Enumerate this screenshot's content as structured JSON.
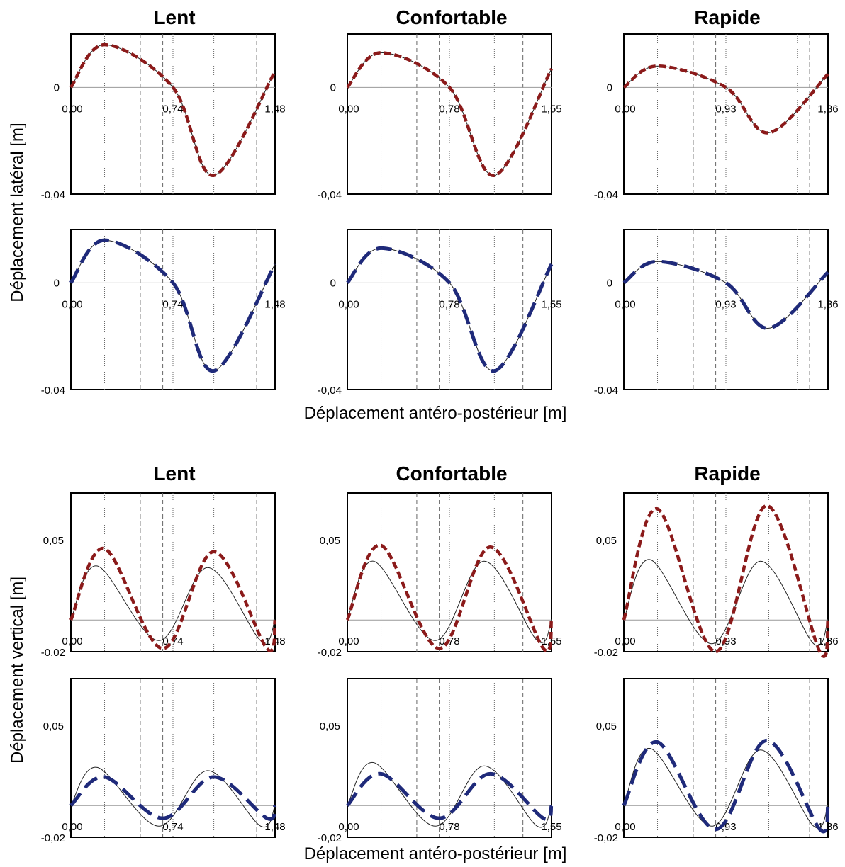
{
  "titles": [
    "Lent",
    "Confortable",
    "Rapide"
  ],
  "labels": {
    "lateral_ylabel": "Déplacement latéral [m]",
    "vertical_ylabel": "Déplacement vertical [m]",
    "xlabel_top": "Déplacement antéro-postérieur [m]",
    "xlabel_bottom": "Déplacement antéro-postérieur [m]"
  },
  "colors": {
    "red": "#8B1A1A",
    "blue": "#1F2A7A",
    "reference": "#333333"
  },
  "chart_data": [
    {
      "type": "line",
      "quantity": "lateral",
      "speeds": [
        "Lent",
        "Confortable",
        "Rapide"
      ],
      "xticks": [
        [
          "0,00",
          "0,74",
          "1,48"
        ],
        [
          "0,00",
          "0,78",
          "1,55"
        ],
        [
          "0,00",
          "0,93",
          "1,86"
        ]
      ],
      "yticks": [
        "0",
        "-0,04"
      ],
      "ylim": [
        -0.04,
        0.02
      ],
      "vertical_dotted_lines": [
        [
          0.165,
          0.5,
          0.7
        ],
        [
          0.165,
          0.5,
          0.72
        ],
        [
          0.165,
          0.5,
          0.85
        ]
      ],
      "vertical_dashed_lines": [
        [
          0.34,
          0.45,
          0.91
        ],
        [
          0.34,
          0.45,
          0.86
        ],
        [
          0.34,
          0.45,
          0.91
        ]
      ],
      "rows": [
        {
          "color": "red",
          "style": "dashed-short",
          "panels": [
            {
              "x": [
                0,
                0.165,
                0.5,
                0.7,
                1.0
              ],
              "y": [
                0,
                0.016,
                0.0,
                -0.033,
                0.006
              ]
            },
            {
              "x": [
                0,
                0.165,
                0.5,
                0.72,
                1.0
              ],
              "y": [
                0,
                0.013,
                0.0,
                -0.033,
                0.007
              ]
            },
            {
              "x": [
                0,
                0.165,
                0.5,
                0.71,
                1.0
              ],
              "y": [
                0,
                0.008,
                0.0,
                -0.017,
                0.005
              ]
            }
          ]
        },
        {
          "color": "blue",
          "style": "dashed-long",
          "panels": [
            {
              "x": [
                0,
                0.165,
                0.5,
                0.7,
                1.0
              ],
              "y": [
                0,
                0.016,
                0.0,
                -0.033,
                0.007
              ]
            },
            {
              "x": [
                0,
                0.165,
                0.5,
                0.72,
                1.0
              ],
              "y": [
                0,
                0.013,
                0.0,
                -0.033,
                0.007
              ]
            },
            {
              "x": [
                0,
                0.165,
                0.5,
                0.71,
                1.0
              ],
              "y": [
                0,
                0.008,
                0.0,
                -0.017,
                0.004
              ]
            }
          ]
        }
      ]
    },
    {
      "type": "line",
      "quantity": "vertical",
      "speeds": [
        "Lent",
        "Confortable",
        "Rapide"
      ],
      "xticks": [
        [
          "0,00",
          "0,74",
          "1,48"
        ],
        [
          "0,00",
          "0,78",
          "1,55"
        ],
        [
          "0,00",
          "0,93",
          "1,86"
        ]
      ],
      "yticks": [
        "0,05",
        "-0,02"
      ],
      "ylim": [
        -0.02,
        0.08
      ],
      "vertical_dotted_lines": [
        [
          0.165,
          0.5,
          0.7
        ],
        [
          0.165,
          0.5,
          0.72
        ],
        [
          0.165,
          0.5,
          0.71
        ]
      ],
      "vertical_dashed_lines": [
        [
          0.34,
          0.45,
          0.91
        ],
        [
          0.34,
          0.45,
          0.86
        ],
        [
          0.34,
          0.45,
          0.91
        ]
      ],
      "rows": [
        {
          "color": "red",
          "style": "dashed-short",
          "panels": [
            {
              "peaks": [
                0.045,
                0.043
              ],
              "trough": -0.018,
              "ref_peaks": [
                0.034,
                0.033
              ],
              "ref_trough": -0.013
            },
            {
              "peaks": [
                0.047,
                0.046
              ],
              "trough": -0.018,
              "ref_peaks": [
                0.037,
                0.037
              ],
              "ref_trough": -0.013
            },
            {
              "peaks": [
                0.07,
                0.072
              ],
              "trough": -0.02,
              "ref_peaks": [
                0.038,
                0.037
              ],
              "ref_trough": -0.015
            }
          ]
        },
        {
          "color": "blue",
          "style": "dashed-long",
          "panels": [
            {
              "peaks": [
                0.018,
                0.018
              ],
              "trough": -0.008,
              "ref_peaks": [
                0.024,
                0.022
              ],
              "ref_trough": -0.013
            },
            {
              "peaks": [
                0.02,
                0.02
              ],
              "trough": -0.008,
              "ref_peaks": [
                0.027,
                0.025
              ],
              "ref_trough": -0.013
            },
            {
              "peaks": [
                0.04,
                0.041
              ],
              "trough": -0.015,
              "ref_peaks": [
                0.036,
                0.035
              ],
              "ref_trough": -0.013
            }
          ]
        }
      ]
    }
  ]
}
